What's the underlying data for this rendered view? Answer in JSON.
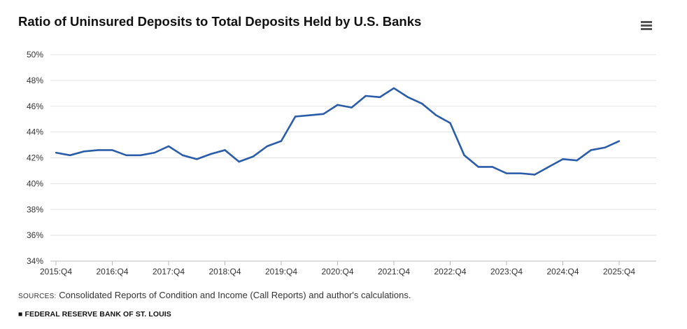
{
  "chart_data": {
    "type": "line",
    "title": "Ratio of Uninsured Deposits to Total Deposits Held by U.S. Banks",
    "xlabel": "",
    "ylabel": "",
    "ylim": [
      34,
      50
    ],
    "y_ticks": [
      "34%",
      "36%",
      "38%",
      "40%",
      "42%",
      "44%",
      "46%",
      "48%",
      "50%"
    ],
    "x_ticks": [
      "2015:Q4",
      "2016:Q4",
      "2017:Q4",
      "2018:Q4",
      "2019:Q4",
      "2020:Q4",
      "2021:Q4",
      "2022:Q4",
      "2023:Q4",
      "2024:Q4",
      "2025:Q4"
    ],
    "grid": true,
    "line_color": "#2a5caa",
    "x": [
      "2015:Q4",
      "2016:Q1",
      "2016:Q2",
      "2016:Q3",
      "2016:Q4",
      "2017:Q1",
      "2017:Q2",
      "2017:Q3",
      "2017:Q4",
      "2018:Q1",
      "2018:Q2",
      "2018:Q3",
      "2018:Q4",
      "2019:Q1",
      "2019:Q2",
      "2019:Q3",
      "2019:Q4",
      "2020:Q1",
      "2020:Q2",
      "2020:Q3",
      "2020:Q4",
      "2021:Q1",
      "2021:Q2",
      "2021:Q3",
      "2021:Q4",
      "2022:Q1",
      "2022:Q2",
      "2022:Q3",
      "2022:Q4",
      "2023:Q1",
      "2023:Q2",
      "2023:Q3",
      "2023:Q4",
      "2024:Q1",
      "2024:Q2",
      "2024:Q3",
      "2024:Q4",
      "2025:Q1",
      "2025:Q2",
      "2025:Q3",
      "2025:Q4"
    ],
    "series": [
      {
        "values": [
          42.4,
          42.2,
          42.5,
          42.6,
          42.6,
          42.2,
          42.2,
          42.4,
          42.9,
          42.2,
          41.9,
          42.3,
          42.6,
          41.7,
          42.1,
          42.9,
          43.3,
          45.2,
          45.3,
          45.4,
          46.1,
          45.9,
          46.8,
          46.7,
          47.4,
          46.7,
          46.2,
          45.3,
          44.7,
          42.2,
          41.3,
          41.3,
          40.8,
          40.8,
          40.7,
          41.3,
          41.9,
          41.8,
          42.6,
          42.8,
          43.3
        ]
      }
    ]
  },
  "menu_icon": "hamburger-menu-icon",
  "source_label": "SOURCES:",
  "source_text": " Consolidated Reports of Condition and Income (Call Reports) and author's calculations.",
  "brand": "■ FEDERAL RESERVE BANK OF ST. LOUIS"
}
